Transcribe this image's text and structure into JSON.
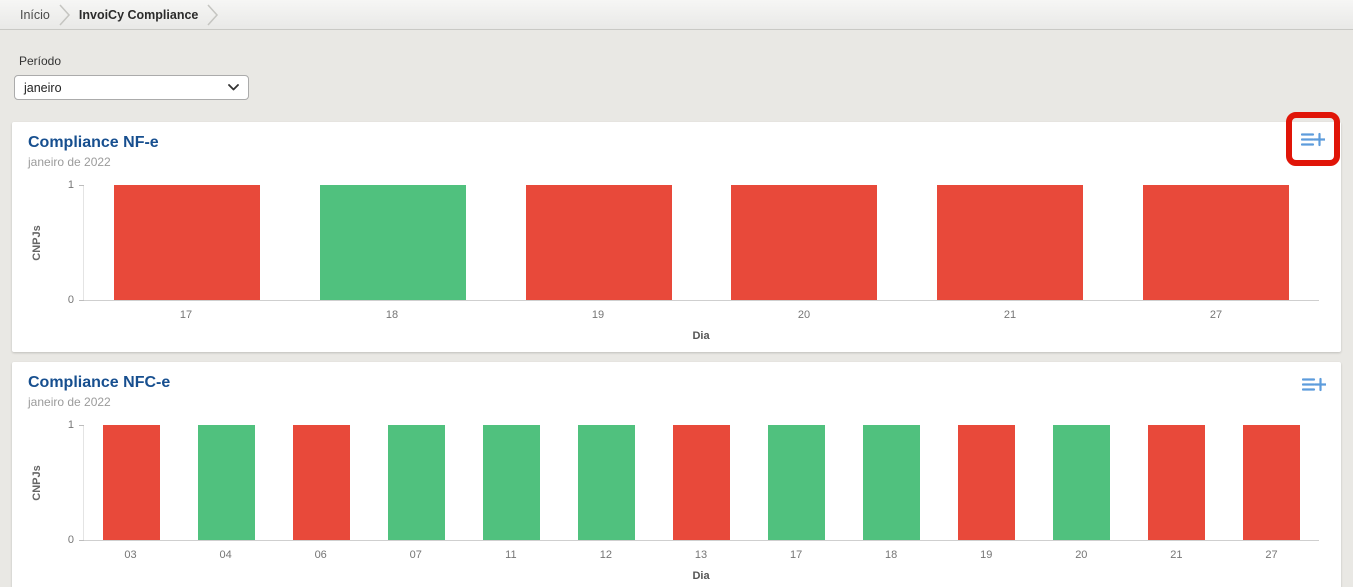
{
  "breadcrumb": {
    "items": [
      "Início",
      "InvoiCy Compliance"
    ]
  },
  "filter": {
    "label": "Período",
    "value": "janeiro"
  },
  "colors": {
    "ok": "#50C17E",
    "fail": "#E8493A",
    "title_blue": "#174F8F",
    "icon_blue": "#5D9CDC",
    "annotation_red": "#E01508"
  },
  "chart_data": [
    {
      "type": "bar",
      "title": "Compliance NF-e",
      "subtitle": "janeiro de 2022",
      "categories": [
        "17",
        "18",
        "19",
        "20",
        "21",
        "27"
      ],
      "values": [
        1,
        1,
        1,
        1,
        1,
        1
      ],
      "statuses": [
        "fail",
        "ok",
        "fail",
        "fail",
        "fail",
        "fail"
      ],
      "xlabel": "Dia",
      "ylabel": "CNPJs",
      "ylim": [
        0,
        1
      ],
      "grid": false,
      "legend": "none",
      "bar_width_pct": 71
    },
    {
      "type": "bar",
      "title": "Compliance NFC-e",
      "subtitle": "janeiro de 2022",
      "categories": [
        "03",
        "04",
        "06",
        "07",
        "11",
        "12",
        "13",
        "17",
        "18",
        "19",
        "20",
        "21",
        "27"
      ],
      "values": [
        1,
        1,
        1,
        1,
        1,
        1,
        1,
        1,
        1,
        1,
        1,
        1,
        1
      ],
      "statuses": [
        "fail",
        "ok",
        "fail",
        "ok",
        "ok",
        "ok",
        "fail",
        "ok",
        "ok",
        "fail",
        "ok",
        "fail",
        "fail"
      ],
      "xlabel": "Dia",
      "ylabel": "CNPJs",
      "ylim": [
        0,
        1
      ],
      "grid": false,
      "legend": "none",
      "bar_width_pct": 61
    }
  ]
}
